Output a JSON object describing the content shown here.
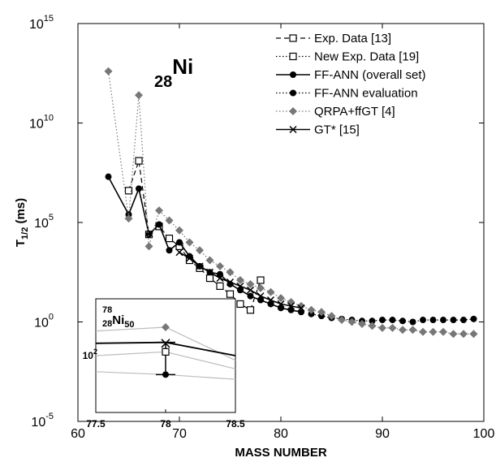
{
  "chart_data": [
    {
      "type": "scatter",
      "title": "",
      "annotation": {
        "subscript": "28",
        "symbol": "Ni"
      },
      "xlabel": "MASS NUMBER",
      "ylabel": {
        "base": "T",
        "sub": "1/2",
        "unit": " (ms)"
      },
      "xlim": [
        60,
        100
      ],
      "ylog": true,
      "ylim_exponent": [
        -5,
        15
      ],
      "xticks": [
        "60",
        "70",
        "80",
        "90",
        "100"
      ],
      "yticks": [
        {
          "base": "10",
          "exp": "-5",
          "value": -5
        },
        {
          "base": "10",
          "exp": "0",
          "value": 0
        },
        {
          "base": "10",
          "exp": "5",
          "value": 5
        },
        {
          "base": "10",
          "exp": "10",
          "value": 10
        },
        {
          "base": "10",
          "exp": "15",
          "value": 15
        }
      ],
      "legend_position": "top-right",
      "series": [
        {
          "name": "Exp. Data [13]",
          "marker": "open-square",
          "line": "dashed",
          "color": "#000000",
          "x": [
            65,
            66,
            67,
            68,
            69,
            70,
            71,
            72,
            73,
            74,
            75,
            76,
            77,
            78
          ],
          "log10_y": [
            6.6,
            8.1,
            4.4,
            4.8,
            4.2,
            3.8,
            3.1,
            2.7,
            2.2,
            1.8,
            1.4,
            0.9,
            0.6,
            2.1
          ]
        },
        {
          "name": "New Exp. Data [19]",
          "marker": "open-square",
          "line": "dotted",
          "color": "#000000",
          "x": [],
          "log10_y": []
        },
        {
          "name": "FF-ANN (overall set)",
          "marker": "filled-circle",
          "line": "solid",
          "color": "#000000",
          "x": [
            63,
            65,
            66,
            67,
            68,
            69,
            70,
            71,
            72,
            73,
            74,
            75,
            76,
            77,
            78,
            79,
            80,
            81,
            82
          ],
          "log10_y": [
            7.3,
            5.4,
            6.7,
            4.4,
            4.9,
            3.6,
            4.0,
            3.3,
            2.8,
            2.5,
            2.4,
            1.9,
            1.6,
            1.3,
            1.1,
            0.9,
            0.7,
            0.6,
            0.5
          ]
        },
        {
          "name": "FF-ANN evaluation",
          "marker": "filled-circle",
          "line": "dotted",
          "color": "#000000",
          "x": [
            83,
            84,
            85,
            86,
            87,
            88,
            89,
            90,
            91,
            92,
            93,
            94,
            95,
            96,
            97,
            98,
            99
          ],
          "log10_y": [
            0.4,
            0.3,
            0.2,
            0.15,
            0.1,
            0.05,
            0.05,
            0.1,
            0.1,
            0.05,
            0.0,
            0.1,
            0.1,
            0.1,
            0.1,
            0.1,
            0.15
          ]
        },
        {
          "name": "QRPA+ffGT [4]",
          "marker": "diamond",
          "line": "dotted",
          "color": "#777777",
          "x": [
            63,
            65,
            66,
            67,
            68,
            69,
            70,
            71,
            72,
            73,
            74,
            75,
            76,
            77,
            78,
            79,
            80,
            81,
            82,
            83,
            84,
            85,
            86,
            87,
            88,
            89,
            90,
            91,
            92,
            93,
            94,
            95,
            96,
            97,
            98,
            99
          ],
          "log10_y": [
            12.6,
            5.2,
            11.4,
            3.8,
            5.6,
            5.1,
            4.6,
            4.0,
            3.6,
            3.1,
            2.8,
            2.5,
            2.1,
            1.9,
            1.7,
            1.5,
            1.2,
            1.0,
            0.8,
            0.6,
            0.5,
            0.3,
            0.1,
            0.0,
            -0.1,
            -0.2,
            -0.3,
            -0.3,
            -0.4,
            -0.4,
            -0.5,
            -0.5,
            -0.5,
            -0.6,
            -0.6,
            -0.6
          ]
        },
        {
          "name": "GT* [15]",
          "marker": "x",
          "line": "solid",
          "color": "#000000",
          "x": [
            70,
            71,
            72,
            73,
            74,
            75,
            76,
            77,
            78,
            79,
            80,
            81,
            82
          ],
          "log10_y": [
            3.5,
            3.2,
            2.8,
            2.5,
            2.2,
            2.0,
            1.8,
            1.6,
            1.3,
            1.1,
            0.9,
            0.8,
            0.7
          ]
        }
      ]
    },
    {
      "type": "scatter",
      "title": "",
      "annotation": {
        "mass": "78",
        "subscript": "28",
        "symbol": "Ni",
        "neutron": "50"
      },
      "xlim": [
        77.5,
        78.5
      ],
      "xticks": [
        "77.5",
        "78",
        "78.5"
      ],
      "ylog": true,
      "ytick": {
        "base": "10",
        "exp": "2",
        "value": 2
      },
      "ylim_exponent": [
        1.4,
        2.6
      ],
      "lines": [
        {
          "name": "QRPA+ffGT [4]",
          "color": "#bbbbbb",
          "x": [
            77.5,
            78.0,
            78.5
          ],
          "log10_y": [
            2.26,
            2.3,
            1.95
          ]
        },
        {
          "name": "GT* [15]",
          "color": "#000000",
          "x": [
            77.5,
            78.0,
            78.5
          ],
          "log10_y": [
            2.13,
            2.14,
            2.0
          ]
        },
        {
          "name": "Exp. Data [13]",
          "color": "#bbbbbb",
          "x": [
            77.5,
            78.0,
            78.5
          ],
          "log10_y": [
            2.0,
            2.04,
            1.86
          ]
        },
        {
          "name": "FF-ANN (overall set)",
          "color": "#bbbbbb",
          "x": [
            77.5,
            78.0,
            78.5
          ],
          "log10_y": [
            1.83,
            1.8,
            1.75
          ]
        }
      ],
      "points": [
        {
          "name": "QRPA+ffGT [4]",
          "marker": "diamond",
          "x": 78.0,
          "log10_y": 2.3
        },
        {
          "name": "GT* [15]",
          "marker": "x",
          "x": 78.0,
          "log10_y": 2.13
        },
        {
          "name": "Exp. Data [13]",
          "marker": "open-square",
          "x": 78.0,
          "log10_y": 2.04
        },
        {
          "name": "FF-ANN (overall set)",
          "marker": "filled-circle",
          "x": 78.0,
          "log10_y": 1.8
        }
      ],
      "errorbar": {
        "x": 78.0,
        "log10_low": 1.8,
        "log10_high": 2.14
      }
    }
  ]
}
